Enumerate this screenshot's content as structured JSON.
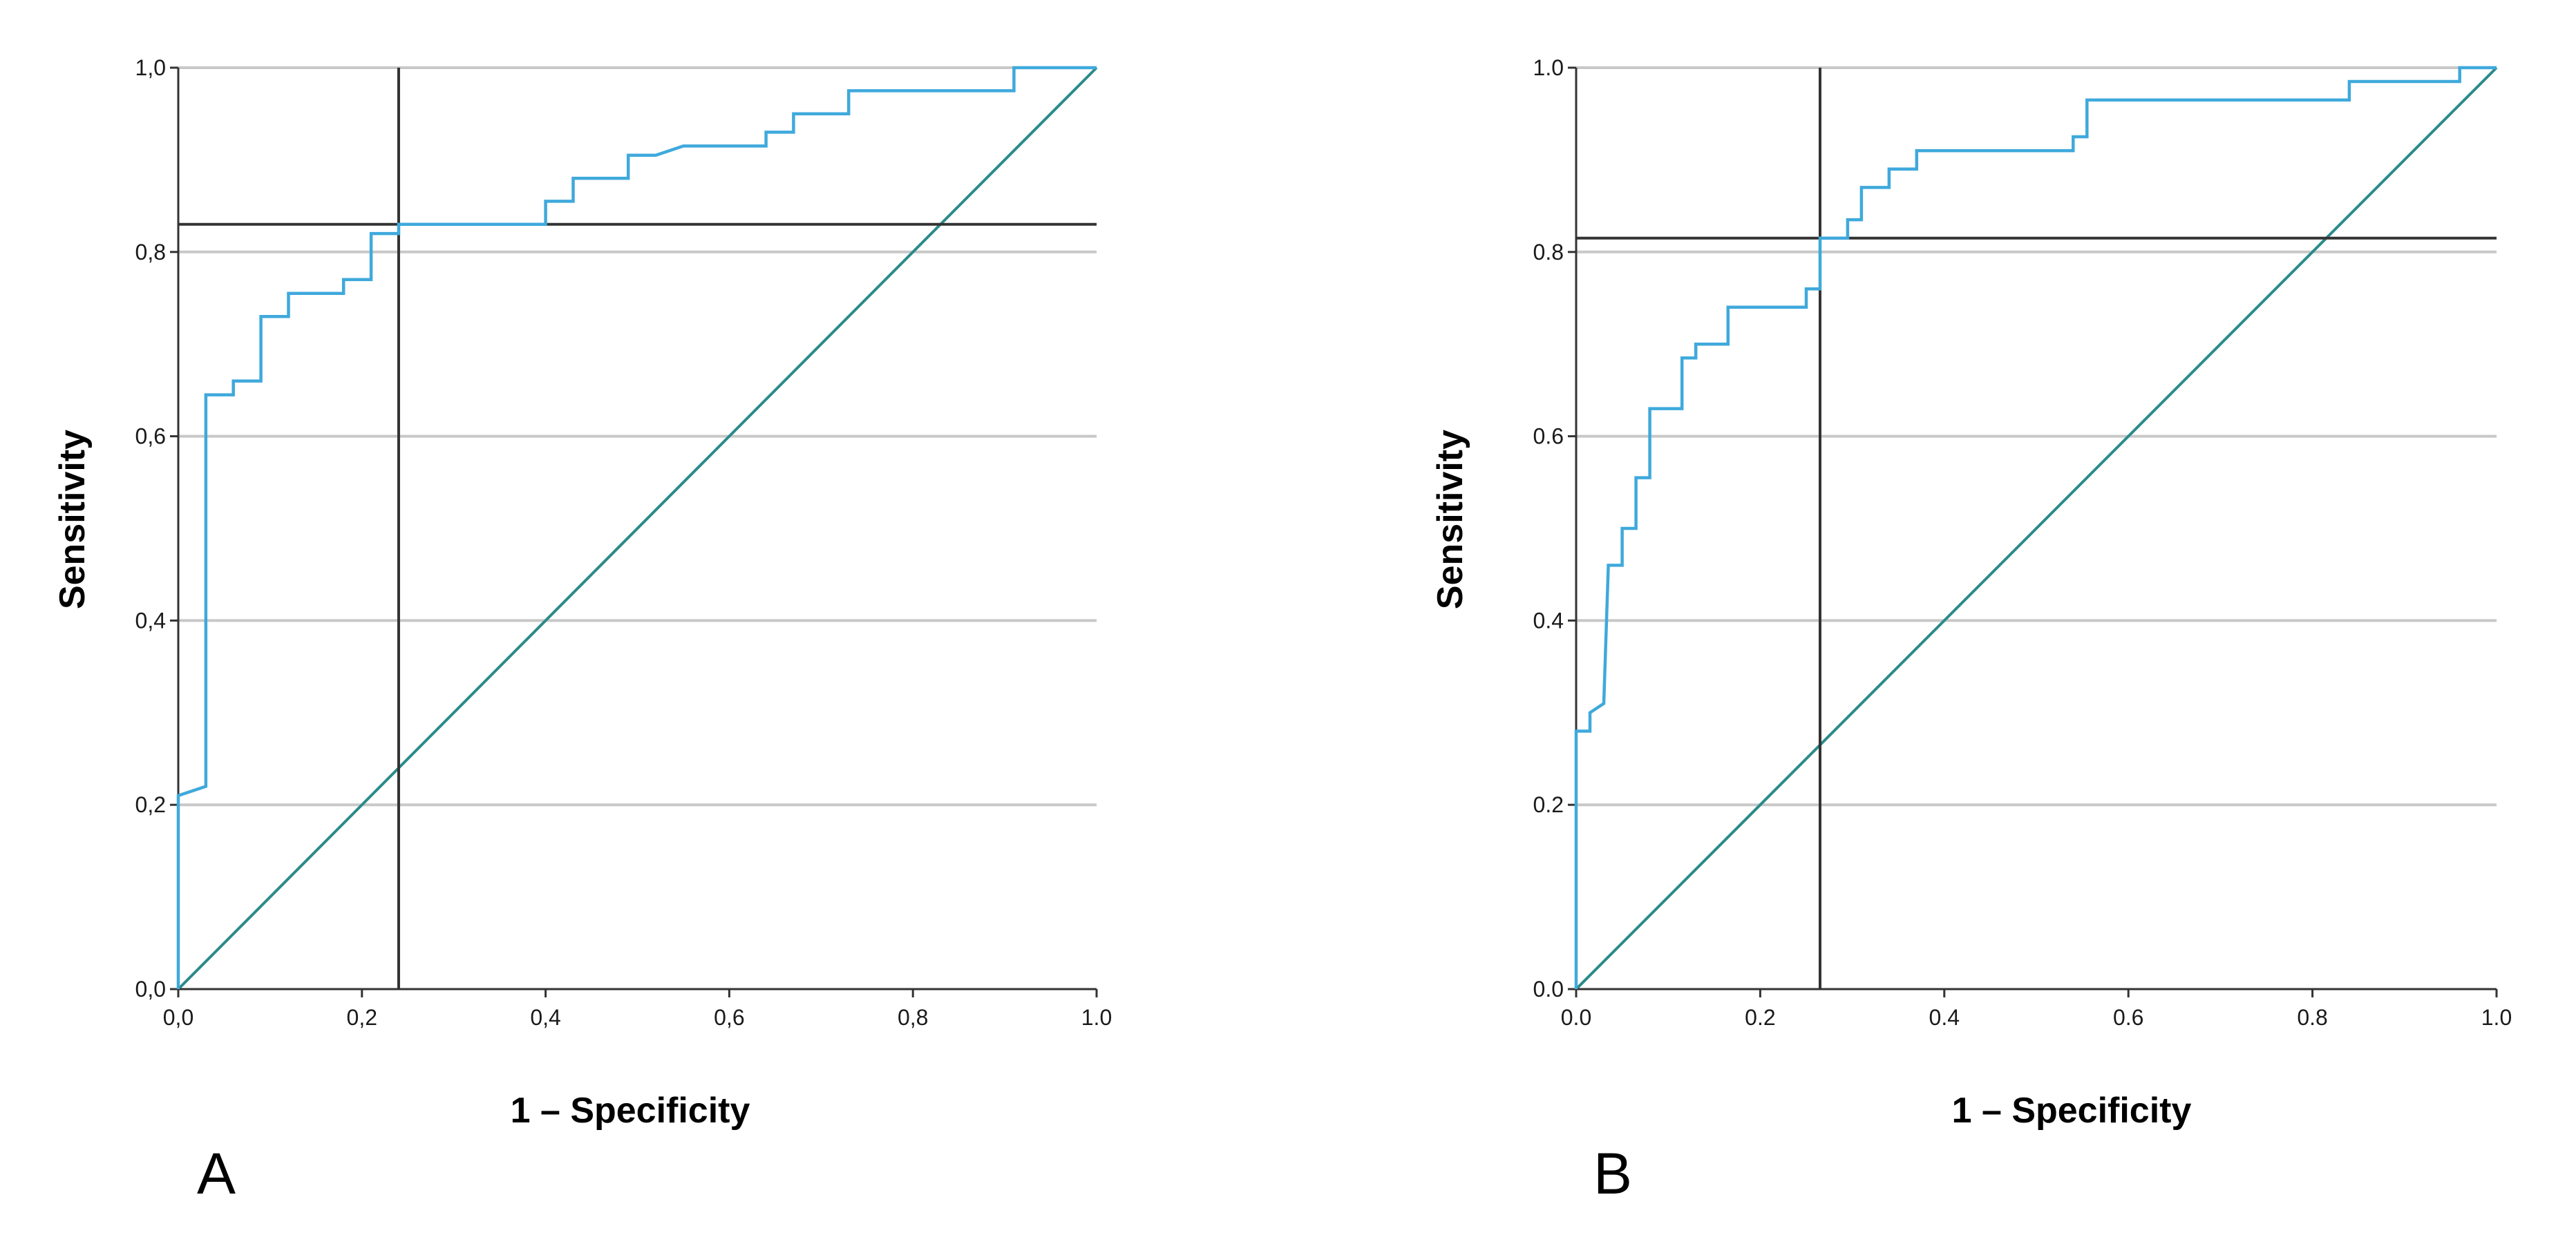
{
  "colors": {
    "roc_curve": "#3fa9dc",
    "reference_line": "#2b8a8a",
    "cutoff_lines": "#333333",
    "grid": "#c8c8c8",
    "frame": "#333333"
  },
  "chart_data": [
    {
      "panel": "A",
      "type": "line",
      "xlabel": "1 – Specificity",
      "ylabel": "Sensitivity",
      "xlim": [
        0,
        1
      ],
      "ylim": [
        0,
        1
      ],
      "x_tick_labels": [
        "0,0",
        "0,2",
        "0,4",
        "0,6",
        "0,8",
        "1.0"
      ],
      "y_tick_labels": [
        "0,0",
        "0,2",
        "0,4",
        "0,6",
        "0,8",
        "1,0"
      ],
      "grid": "horizontal",
      "cutoff": {
        "x": 0.24,
        "y": 0.83
      },
      "series": [
        {
          "name": "ROC curve",
          "points": [
            [
              0,
              0
            ],
            [
              0,
              0.21
            ],
            [
              0.03,
              0.22
            ],
            [
              0.03,
              0.645
            ],
            [
              0.06,
              0.645
            ],
            [
              0.06,
              0.66
            ],
            [
              0.09,
              0.66
            ],
            [
              0.09,
              0.73
            ],
            [
              0.12,
              0.73
            ],
            [
              0.12,
              0.755
            ],
            [
              0.18,
              0.755
            ],
            [
              0.18,
              0.77
            ],
            [
              0.21,
              0.77
            ],
            [
              0.21,
              0.82
            ],
            [
              0.24,
              0.82
            ],
            [
              0.24,
              0.83
            ],
            [
              0.4,
              0.83
            ],
            [
              0.4,
              0.855
            ],
            [
              0.43,
              0.855
            ],
            [
              0.43,
              0.88
            ],
            [
              0.49,
              0.88
            ],
            [
              0.49,
              0.905
            ],
            [
              0.52,
              0.905
            ],
            [
              0.55,
              0.915
            ],
            [
              0.64,
              0.915
            ],
            [
              0.64,
              0.93
            ],
            [
              0.67,
              0.93
            ],
            [
              0.67,
              0.95
            ],
            [
              0.73,
              0.95
            ],
            [
              0.73,
              0.975
            ],
            [
              0.91,
              0.975
            ],
            [
              0.91,
              1.0
            ],
            [
              1.0,
              1.0
            ]
          ]
        },
        {
          "name": "Reference line",
          "points": [
            [
              0,
              0
            ],
            [
              1,
              1
            ]
          ]
        }
      ]
    },
    {
      "panel": "B",
      "type": "line",
      "xlabel": "1 – Specificity",
      "ylabel": "Sensitivity",
      "xlim": [
        0,
        1
      ],
      "ylim": [
        0,
        1
      ],
      "x_tick_labels": [
        "0.0",
        "0.2",
        "0.4",
        "0.6",
        "0.8",
        "1.0"
      ],
      "y_tick_labels": [
        "0.0",
        "0.2",
        "0.4",
        "0.6",
        "0.8",
        "1.0"
      ],
      "grid": "horizontal",
      "cutoff": {
        "x": 0.265,
        "y": 0.815
      },
      "series": [
        {
          "name": "ROC curve",
          "points": [
            [
              0,
              0
            ],
            [
              0,
              0.28
            ],
            [
              0.015,
              0.28
            ],
            [
              0.015,
              0.3
            ],
            [
              0.03,
              0.31
            ],
            [
              0.035,
              0.46
            ],
            [
              0.05,
              0.46
            ],
            [
              0.05,
              0.5
            ],
            [
              0.065,
              0.5
            ],
            [
              0.065,
              0.555
            ],
            [
              0.08,
              0.555
            ],
            [
              0.08,
              0.63
            ],
            [
              0.115,
              0.63
            ],
            [
              0.115,
              0.685
            ],
            [
              0.13,
              0.685
            ],
            [
              0.13,
              0.7
            ],
            [
              0.165,
              0.7
            ],
            [
              0.165,
              0.74
            ],
            [
              0.25,
              0.74
            ],
            [
              0.25,
              0.76
            ],
            [
              0.265,
              0.76
            ],
            [
              0.265,
              0.815
            ],
            [
              0.295,
              0.815
            ],
            [
              0.295,
              0.835
            ],
            [
              0.31,
              0.835
            ],
            [
              0.31,
              0.87
            ],
            [
              0.34,
              0.87
            ],
            [
              0.34,
              0.89
            ],
            [
              0.37,
              0.89
            ],
            [
              0.37,
              0.91
            ],
            [
              0.54,
              0.91
            ],
            [
              0.54,
              0.925
            ],
            [
              0.555,
              0.925
            ],
            [
              0.555,
              0.965
            ],
            [
              0.84,
              0.965
            ],
            [
              0.84,
              0.985
            ],
            [
              0.96,
              0.985
            ],
            [
              0.96,
              1.0
            ],
            [
              1.0,
              1.0
            ]
          ]
        },
        {
          "name": "Reference line",
          "points": [
            [
              0,
              0
            ],
            [
              1,
              1
            ]
          ]
        }
      ]
    }
  ]
}
